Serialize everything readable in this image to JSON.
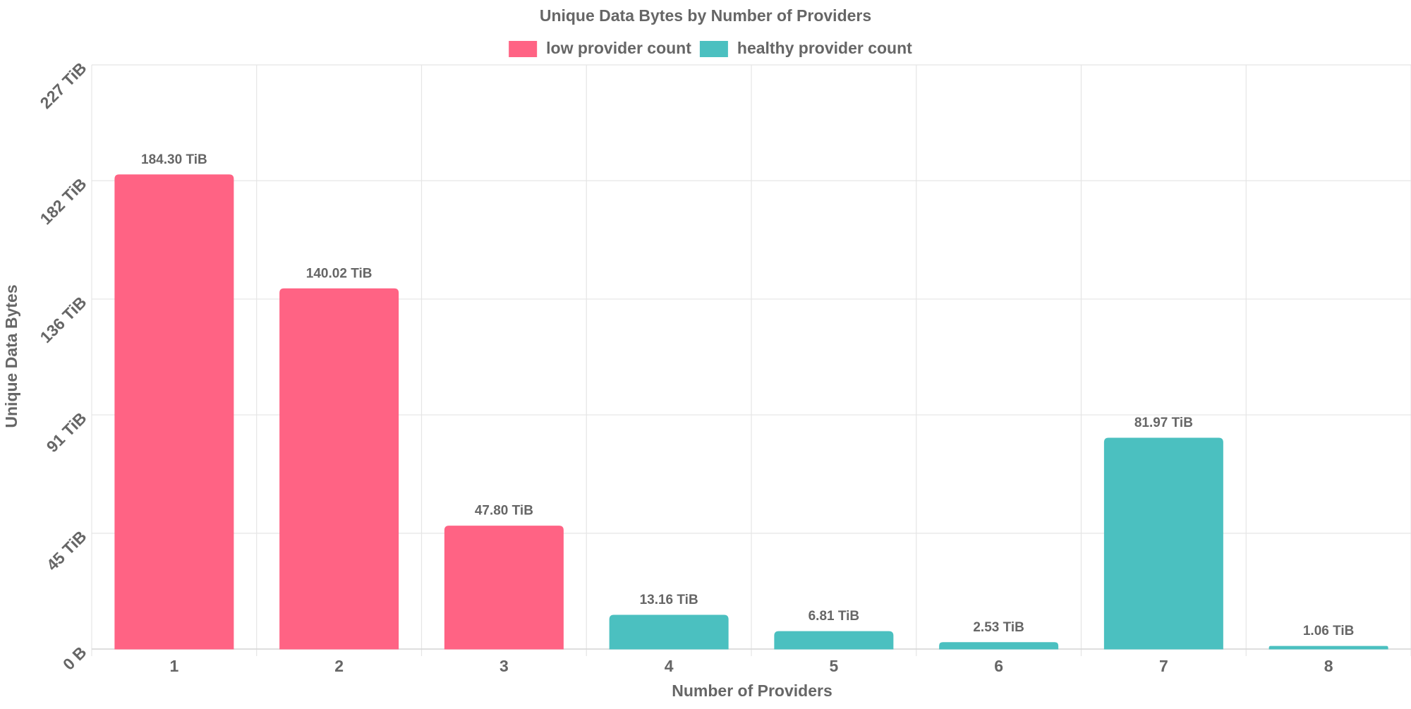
{
  "chart_data": {
    "type": "bar",
    "title": "Unique Data Bytes by Number of Providers",
    "xlabel": "Number of Providers",
    "ylabel": "Unique Data Bytes",
    "categories": [
      "1",
      "2",
      "3",
      "4",
      "5",
      "6",
      "7",
      "8"
    ],
    "values": [
      184.3,
      140.02,
      47.8,
      13.16,
      6.81,
      2.53,
      81.97,
      1.06
    ],
    "value_labels": [
      "184.30 TiB",
      "140.02 TiB",
      "47.80 TiB",
      "13.16 TiB",
      "6.81 TiB",
      "2.53 TiB",
      "81.97 TiB",
      "1.06 TiB"
    ],
    "bar_series": [
      "low provider count",
      "low provider count",
      "low provider count",
      "healthy provider count",
      "healthy provider count",
      "healthy provider count",
      "healthy provider count",
      "healthy provider count"
    ],
    "unit": "TiB",
    "ylim": [
      0,
      227
    ],
    "y_ticks": [
      0,
      45,
      91,
      136,
      182,
      227
    ],
    "y_tick_labels": [
      "0 B",
      "45 TiB",
      "91 TiB",
      "136 TiB",
      "182 TiB",
      "227 TiB"
    ],
    "grid": true,
    "legend": {
      "position": "top-center",
      "entries": [
        {
          "name": "low provider count",
          "color": "#ff6384"
        },
        {
          "name": "healthy provider count",
          "color": "#4bc0c0"
        }
      ]
    },
    "colors": {
      "low provider count": "#ff6384",
      "healthy provider count": "#4bc0c0",
      "text": "#666666",
      "grid": "#e5e5e5"
    }
  }
}
